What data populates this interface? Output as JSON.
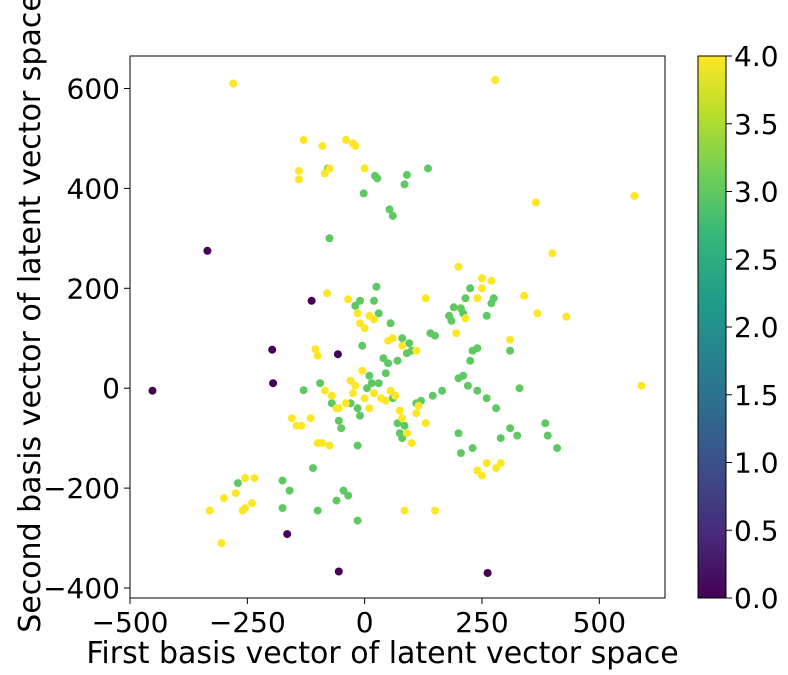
{
  "chart_data": {
    "type": "scatter",
    "title": "",
    "xlabel": "First basis vector of latent vector space",
    "ylabel": "Second basis vector of latent vector space",
    "xlim": [
      -500,
      640
    ],
    "ylim": [
      -420,
      665
    ],
    "xticks": [
      -500,
      -250,
      0,
      250,
      500
    ],
    "xtick_labels": [
      "−500",
      "−250",
      "0",
      "250",
      "500"
    ],
    "yticks": [
      -400,
      -200,
      0,
      200,
      400,
      600
    ],
    "ytick_labels": [
      "−400",
      "−200",
      "0",
      "200",
      "400",
      "600"
    ],
    "grid": false,
    "colorbar": {
      "colormap": "viridis",
      "range": [
        0.0,
        4.0
      ],
      "ticks": [
        0.0,
        0.5,
        1.0,
        1.5,
        2.0,
        2.5,
        3.0,
        3.5,
        4.0
      ],
      "tick_labels": [
        "0.0",
        "0.5",
        "1.0",
        "1.5",
        "2.0",
        "2.5",
        "3.0",
        "3.5",
        "4.0"
      ],
      "colors": [
        "#440154",
        "#482878",
        "#3e4989",
        "#31688e",
        "#26828e",
        "#1f9e89",
        "#35b779",
        "#6ece58",
        "#b5de2b",
        "#fde725"
      ]
    },
    "series": [
      {
        "value": 0,
        "color": "#440154",
        "points": [
          [
            -452,
            -5
          ],
          [
            -335,
            275
          ],
          [
            -113,
            175
          ],
          [
            -197,
            77
          ],
          [
            -195,
            10
          ],
          [
            -165,
            -292
          ],
          [
            -57,
            68
          ],
          [
            -55,
            -367
          ],
          [
            262,
            -370
          ]
        ]
      },
      {
        "value": 3,
        "color": "#5ec962",
        "points": [
          [
            -78,
            440
          ],
          [
            -75,
            300
          ],
          [
            -2,
            390
          ],
          [
            22,
            425
          ],
          [
            27,
            420
          ],
          [
            53,
            358
          ],
          [
            60,
            345
          ],
          [
            85,
            408
          ],
          [
            90,
            427
          ],
          [
            135,
            440
          ],
          [
            -20,
            165
          ],
          [
            -10,
            175
          ],
          [
            20,
            175
          ],
          [
            25,
            203
          ],
          [
            30,
            150
          ],
          [
            55,
            130
          ],
          [
            80,
            100
          ],
          [
            90,
            70
          ],
          [
            140,
            110
          ],
          [
            150,
            105
          ],
          [
            180,
            145
          ],
          [
            185,
            135
          ],
          [
            190,
            162
          ],
          [
            205,
            160
          ],
          [
            210,
            150
          ],
          [
            215,
            180
          ],
          [
            225,
            200
          ],
          [
            225,
            55
          ],
          [
            230,
            75
          ],
          [
            240,
            80
          ],
          [
            260,
            145
          ],
          [
            270,
            170
          ],
          [
            275,
            180
          ],
          [
            310,
            75
          ],
          [
            120,
            -25
          ],
          [
            145,
            -15
          ],
          [
            165,
            -5
          ],
          [
            200,
            20
          ],
          [
            210,
            25
          ],
          [
            220,
            5
          ],
          [
            240,
            -5
          ],
          [
            260,
            -20
          ],
          [
            280,
            -40
          ],
          [
            290,
            -100
          ],
          [
            310,
            -80
          ],
          [
            325,
            -95
          ],
          [
            330,
            0
          ],
          [
            385,
            -70
          ],
          [
            390,
            -95
          ],
          [
            410,
            -120
          ],
          [
            -110,
            -160
          ],
          [
            -100,
            -245
          ],
          [
            -130,
            -4
          ],
          [
            -95,
            10
          ],
          [
            -70,
            -30
          ],
          [
            -55,
            -65
          ],
          [
            -50,
            -80
          ],
          [
            -30,
            -30
          ],
          [
            -15,
            -40
          ],
          [
            -10,
            -55
          ],
          [
            -15,
            -115
          ],
          [
            -5,
            85
          ],
          [
            5,
            0
          ],
          [
            15,
            10
          ],
          [
            30,
            10
          ],
          [
            45,
            30
          ],
          [
            50,
            50
          ],
          [
            60,
            -20
          ],
          [
            70,
            -70
          ],
          [
            75,
            -90
          ],
          [
            80,
            -100
          ],
          [
            85,
            -75
          ],
          [
            95,
            90
          ],
          [
            100,
            75
          ],
          [
            110,
            -30
          ],
          [
            200,
            -90
          ],
          [
            205,
            -130
          ],
          [
            230,
            -120
          ],
          [
            -175,
            -185
          ],
          [
            -175,
            -240
          ],
          [
            -160,
            -205
          ],
          [
            -270,
            -190
          ],
          [
            -60,
            -225
          ],
          [
            -45,
            -205
          ],
          [
            -35,
            -215
          ],
          [
            -15,
            -265
          ],
          [
            10,
            25
          ],
          [
            40,
            60
          ],
          [
            70,
            55
          ]
        ]
      },
      {
        "value": 4,
        "color": "#fde725",
        "points": [
          [
            -280,
            610
          ],
          [
            -130,
            497
          ],
          [
            -90,
            485
          ],
          [
            -40,
            497
          ],
          [
            -25,
            490
          ],
          [
            -20,
            485
          ],
          [
            0,
            440
          ],
          [
            -75,
            440
          ],
          [
            -85,
            430
          ],
          [
            -140,
            435
          ],
          [
            -140,
            418
          ],
          [
            278,
            617
          ],
          [
            365,
            372
          ],
          [
            400,
            270
          ],
          [
            575,
            385
          ],
          [
            590,
            5
          ],
          [
            430,
            143
          ],
          [
            368,
            150
          ],
          [
            340,
            185
          ],
          [
            -35,
            178
          ],
          [
            -15,
            150
          ],
          [
            -10,
            130
          ],
          [
            0,
            120
          ],
          [
            10,
            145
          ],
          [
            20,
            138
          ],
          [
            -80,
            190
          ],
          [
            -105,
            78
          ],
          [
            -100,
            65
          ],
          [
            -85,
            -5
          ],
          [
            -70,
            -15
          ],
          [
            -60,
            -40
          ],
          [
            -40,
            -30
          ],
          [
            -30,
            15
          ],
          [
            -25,
            -10
          ],
          [
            -20,
            5
          ],
          [
            -5,
            35
          ],
          [
            0,
            -20
          ],
          [
            10,
            -40
          ],
          [
            20,
            -10
          ],
          [
            35,
            -20
          ],
          [
            45,
            -25
          ],
          [
            55,
            -5
          ],
          [
            65,
            -15
          ],
          [
            75,
            -45
          ],
          [
            80,
            -60
          ],
          [
            90,
            -90
          ],
          [
            100,
            -110
          ],
          [
            110,
            -50
          ],
          [
            115,
            -35
          ],
          [
            130,
            -70
          ],
          [
            150,
            -245
          ],
          [
            85,
            -245
          ],
          [
            -90,
            -110
          ],
          [
            -75,
            -115
          ],
          [
            -55,
            -40
          ],
          [
            -115,
            -60
          ],
          [
            -145,
            -75
          ],
          [
            -135,
            -75
          ],
          [
            -100,
            -110
          ],
          [
            240,
            180
          ],
          [
            250,
            200
          ],
          [
            250,
            220
          ],
          [
            270,
            215
          ],
          [
            215,
            140
          ],
          [
            195,
            110
          ],
          [
            200,
            243
          ],
          [
            130,
            180
          ],
          [
            50,
            95
          ],
          [
            60,
            100
          ],
          [
            80,
            85
          ],
          [
            110,
            75
          ],
          [
            240,
            -165
          ],
          [
            250,
            -175
          ],
          [
            260,
            -150
          ],
          [
            280,
            -160
          ],
          [
            290,
            -150
          ],
          [
            310,
            97
          ],
          [
            -155,
            -60
          ],
          [
            -300,
            -220
          ],
          [
            -330,
            -245
          ],
          [
            -305,
            -310
          ],
          [
            -235,
            -180
          ],
          [
            -240,
            -230
          ],
          [
            -255,
            -240
          ],
          [
            -260,
            -245
          ],
          [
            -255,
            -180
          ],
          [
            -275,
            -210
          ]
        ]
      }
    ]
  }
}
